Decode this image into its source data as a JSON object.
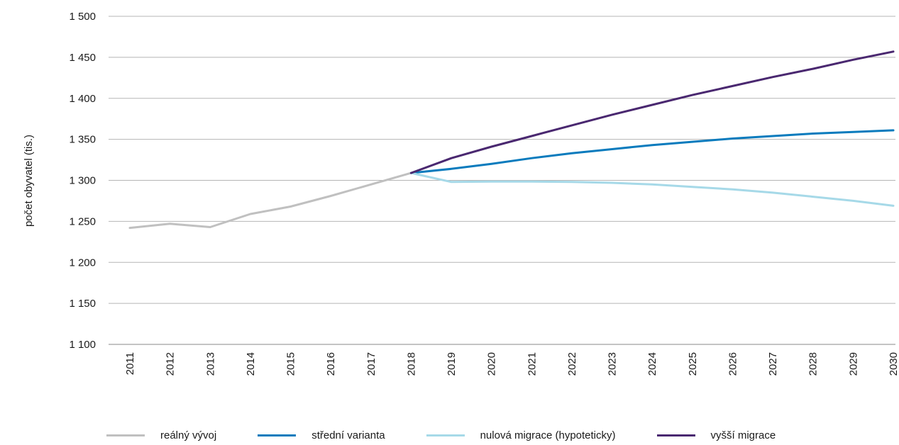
{
  "chart_data": {
    "type": "line",
    "ylabel": "počet obyvatel (tis.)",
    "xlabel": "",
    "ylim": [
      1100,
      1500
    ],
    "yticks": [
      1100,
      1150,
      1200,
      1250,
      1300,
      1350,
      1400,
      1450,
      1500
    ],
    "ytick_labels": [
      "1 100",
      "1 150",
      "1 200",
      "1 250",
      "1 300",
      "1 350",
      "1 400",
      "1 450",
      "1 500"
    ],
    "categories": [
      "2011",
      "2012",
      "2013",
      "2014",
      "2015",
      "2016",
      "2017",
      "2018",
      "2019",
      "2020",
      "2021",
      "2022",
      "2023",
      "2024",
      "2025",
      "2026",
      "2027",
      "2028",
      "2029",
      "2030"
    ],
    "grid": "horizontal",
    "legend_position": "bottom",
    "series": [
      {
        "name": "reálný vývoj",
        "color": "#c0c0c0",
        "values": [
          1242,
          1247,
          1243,
          1259,
          1268,
          1281,
          1295,
          1309,
          null,
          null,
          null,
          null,
          null,
          null,
          null,
          null,
          null,
          null,
          null,
          null
        ]
      },
      {
        "name": "střední varianta",
        "color": "#0a7bbd",
        "values": [
          null,
          null,
          null,
          null,
          null,
          null,
          null,
          1309,
          1314,
          1320,
          1327,
          1333,
          1338,
          1343,
          1347,
          1351,
          1354,
          1357,
          1359,
          1361
        ]
      },
      {
        "name": "nulová migrace (hypoteticky)",
        "color": "#a6d9e8",
        "values": [
          null,
          null,
          null,
          null,
          null,
          null,
          null,
          1309,
          1298,
          1298.5,
          1298.5,
          1298,
          1297,
          1295,
          1292,
          1289,
          1285,
          1280,
          1275,
          1269
        ]
      },
      {
        "name": "vyšší migrace",
        "color": "#4a2870",
        "values": [
          null,
          null,
          null,
          null,
          null,
          null,
          null,
          1309,
          1327,
          1341,
          1354,
          1367,
          1380,
          1392,
          1404,
          1415,
          1426,
          1436,
          1447,
          1457
        ]
      }
    ]
  }
}
